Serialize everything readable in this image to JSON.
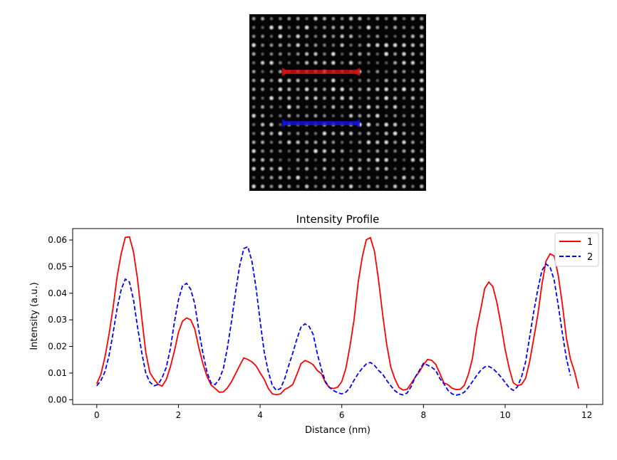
{
  "chart_data": [
    {
      "type": "image",
      "description_colors": {
        "background": "#000000",
        "atoms": "#ffffff"
      },
      "grid": {
        "rows": 20,
        "cols": 20
      },
      "overlays": [
        {
          "name": "line-1",
          "color": "#dd0000"
        },
        {
          "name": "line-2",
          "color": "#0000dd"
        }
      ]
    },
    {
      "type": "line",
      "title": "Intensity Profile",
      "xlabel": "Distance (nm)",
      "ylabel": "Intensity (a.u.)",
      "xlim": [
        -0.59,
        12.39
      ],
      "ylim": [
        -0.0018,
        0.0643
      ],
      "xticks": [
        0,
        2,
        4,
        6,
        8,
        10,
        12
      ],
      "yticks": [
        0.0,
        0.01,
        0.02,
        0.03,
        0.04,
        0.05,
        0.06
      ],
      "xtick_labels": [
        "0",
        "2",
        "4",
        "6",
        "8",
        "10",
        "12"
      ],
      "ytick_labels": [
        "0.00",
        "0.01",
        "0.02",
        "0.03",
        "0.04",
        "0.05",
        "0.06"
      ],
      "legend_position": "top-right",
      "series": [
        {
          "name": "1",
          "color": "#ff0000",
          "style": "solid",
          "x": [
            0,
            0.1,
            0.2,
            0.3,
            0.4,
            0.5,
            0.6,
            0.7,
            0.8,
            0.9,
            1.0,
            1.1,
            1.2,
            1.3,
            1.4,
            1.5,
            1.6,
            1.7,
            1.8,
            1.9,
            2.0,
            2.1,
            2.2,
            2.3,
            2.4,
            2.5,
            2.6,
            2.7,
            2.8,
            2.9,
            3.0,
            3.1,
            3.2,
            3.3,
            3.4,
            3.5,
            3.6,
            3.7,
            3.8,
            3.9,
            4.0,
            4.1,
            4.2,
            4.3,
            4.4,
            4.5,
            4.6,
            4.7,
            4.8,
            4.9,
            5.0,
            5.1,
            5.2,
            5.3,
            5.4,
            5.5,
            5.6,
            5.7,
            5.8,
            5.9,
            6.0,
            6.1,
            6.2,
            6.3,
            6.4,
            6.5,
            6.6,
            6.7,
            6.8,
            6.9,
            7.0,
            7.1,
            7.2,
            7.3,
            7.4,
            7.5,
            7.6,
            7.7,
            7.8,
            7.9,
            8.0,
            8.1,
            8.2,
            8.3,
            8.4,
            8.5,
            8.6,
            8.7,
            8.8,
            8.9,
            9.0,
            9.1,
            9.2,
            9.3,
            9.4,
            9.5,
            9.6,
            9.7,
            9.8,
            9.9,
            10.0,
            10.1,
            10.2,
            10.3,
            10.4,
            10.5,
            10.6,
            10.7,
            10.8,
            10.9,
            11.0,
            11.1,
            11.2,
            11.3,
            11.4,
            11.5,
            11.6,
            11.7,
            11.8
          ],
          "y": [
            0.006,
            0.0095,
            0.016,
            0.0245,
            0.0345,
            0.0465,
            0.055,
            0.061,
            0.0612,
            0.0555,
            0.0452,
            0.031,
            0.0178,
            0.0102,
            0.0077,
            0.0058,
            0.0051,
            0.0075,
            0.0122,
            0.0182,
            0.0253,
            0.0295,
            0.0307,
            0.03,
            0.0265,
            0.0195,
            0.0135,
            0.0087,
            0.0055,
            0.0042,
            0.0028,
            0.0029,
            0.0044,
            0.0068,
            0.0098,
            0.0128,
            0.0157,
            0.0151,
            0.0142,
            0.0127,
            0.0101,
            0.0077,
            0.0042,
            0.0022,
            0.0019,
            0.0022,
            0.0038,
            0.0046,
            0.0057,
            0.0095,
            0.0135,
            0.0147,
            0.0141,
            0.0131,
            0.011,
            0.0098,
            0.0064,
            0.0045,
            0.0042,
            0.0047,
            0.0068,
            0.0118,
            0.0201,
            0.03,
            0.044,
            0.0535,
            0.0601,
            0.0609,
            0.0558,
            0.045,
            0.032,
            0.0207,
            0.0122,
            0.0078,
            0.0046,
            0.0036,
            0.0039,
            0.0061,
            0.0085,
            0.0105,
            0.0131,
            0.0151,
            0.0148,
            0.0133,
            0.0099,
            0.0063,
            0.0056,
            0.0043,
            0.0038,
            0.0039,
            0.0054,
            0.0095,
            0.0156,
            0.0264,
            0.0337,
            0.0418,
            0.0442,
            0.0425,
            0.0364,
            0.0281,
            0.0189,
            0.0118,
            0.0063,
            0.0053,
            0.0057,
            0.008,
            0.0143,
            0.0229,
            0.032,
            0.0432,
            0.052,
            0.0548,
            0.054,
            0.0468,
            0.0359,
            0.0232,
            0.0152,
            0.0105,
            0.0042
          ]
        },
        {
          "name": "2",
          "color": "#0000ff",
          "style": "dashed",
          "x": [
            0,
            0.1,
            0.2,
            0.3,
            0.4,
            0.5,
            0.6,
            0.7,
            0.8,
            0.9,
            1.0,
            1.1,
            1.2,
            1.3,
            1.4,
            1.5,
            1.6,
            1.7,
            1.8,
            1.9,
            2.0,
            2.1,
            2.2,
            2.3,
            2.4,
            2.5,
            2.6,
            2.7,
            2.8,
            2.9,
            3.0,
            3.1,
            3.2,
            3.3,
            3.4,
            3.5,
            3.6,
            3.7,
            3.8,
            3.9,
            4.0,
            4.1,
            4.2,
            4.3,
            4.4,
            4.5,
            4.6,
            4.7,
            4.8,
            4.9,
            5.0,
            5.1,
            5.2,
            5.3,
            5.4,
            5.5,
            5.6,
            5.7,
            5.8,
            5.9,
            6.0,
            6.1,
            6.2,
            6.3,
            6.4,
            6.5,
            6.6,
            6.7,
            6.8,
            6.9,
            7.0,
            7.1,
            7.2,
            7.3,
            7.4,
            7.5,
            7.6,
            7.7,
            7.8,
            7.9,
            8.0,
            8.1,
            8.2,
            8.3,
            8.4,
            8.5,
            8.6,
            8.7,
            8.8,
            8.9,
            9.0,
            9.1,
            9.2,
            9.3,
            9.4,
            9.5,
            9.6,
            9.7,
            9.8,
            9.9,
            10.0,
            10.1,
            10.2,
            10.3,
            10.4,
            10.5,
            10.6,
            10.7,
            10.8,
            10.9,
            11.0,
            11.1,
            11.2,
            11.3,
            11.4,
            11.5,
            11.6
          ],
          "y": [
            0.0052,
            0.0072,
            0.0105,
            0.0165,
            0.025,
            0.0345,
            0.0415,
            0.0453,
            0.0442,
            0.0375,
            0.0272,
            0.0178,
            0.01,
            0.0066,
            0.0052,
            0.0057,
            0.0082,
            0.0121,
            0.019,
            0.029,
            0.0375,
            0.0428,
            0.0437,
            0.0415,
            0.036,
            0.026,
            0.0175,
            0.0103,
            0.0062,
            0.0057,
            0.0077,
            0.0117,
            0.0195,
            0.0295,
            0.0405,
            0.0503,
            0.0568,
            0.0575,
            0.052,
            0.042,
            0.0295,
            0.018,
            0.0105,
            0.0053,
            0.0035,
            0.0042,
            0.0078,
            0.0128,
            0.0175,
            0.0228,
            0.0272,
            0.0285,
            0.0275,
            0.0245,
            0.0174,
            0.0115,
            0.0068,
            0.0046,
            0.0034,
            0.0026,
            0.0022,
            0.0028,
            0.0045,
            0.0073,
            0.0098,
            0.0118,
            0.0134,
            0.014,
            0.0129,
            0.011,
            0.0096,
            0.0072,
            0.0052,
            0.0034,
            0.0022,
            0.0018,
            0.0025,
            0.005,
            0.0085,
            0.011,
            0.0137,
            0.013,
            0.0122,
            0.011,
            0.008,
            0.006,
            0.0035,
            0.0022,
            0.0017,
            0.002,
            0.0028,
            0.0046,
            0.0068,
            0.009,
            0.011,
            0.0123,
            0.0125,
            0.0117,
            0.0102,
            0.0085,
            0.0065,
            0.0045,
            0.0035,
            0.0048,
            0.0085,
            0.0142,
            0.0235,
            0.033,
            0.0415,
            0.0485,
            0.051,
            0.0498,
            0.045,
            0.0355,
            0.025,
            0.0155,
            0.009
          ]
        }
      ]
    }
  ]
}
